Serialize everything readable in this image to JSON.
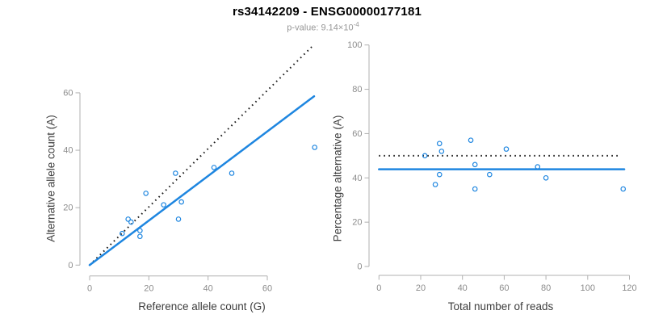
{
  "header": {
    "title": "rs34142209 - ENSG00000177181",
    "subtitle_prefix": "p-value: 9.14×10",
    "subtitle_sup": "-4"
  },
  "colors": {
    "accent_blue": "#1E86E0",
    "identity_line": "#1a1a1a",
    "axis_line": "#b0b0b0",
    "tick_label": "#8c8c8c",
    "axis_title": "#3d3d3d",
    "title": "#000000",
    "subtitle": "#979797"
  },
  "chart_data": [
    {
      "type": "scatter",
      "panel": "left",
      "xlabel": "Reference allele count (G)",
      "ylabel": "Alternative allele count (A)",
      "xticks": [
        0,
        20,
        40,
        60
      ],
      "yticks": [
        0,
        20,
        40,
        60
      ],
      "xlim": [
        0,
        76
      ],
      "ylim": [
        0,
        77
      ],
      "grid": false,
      "points": [
        [
          11,
          11
        ],
        [
          13,
          16
        ],
        [
          14,
          15
        ],
        [
          17,
          10
        ],
        [
          17,
          12
        ],
        [
          19,
          25
        ],
        [
          25,
          21
        ],
        [
          29,
          32
        ],
        [
          30,
          16
        ],
        [
          31,
          22
        ],
        [
          42,
          34
        ],
        [
          48,
          32
        ],
        [
          76,
          41
        ]
      ],
      "lines": [
        {
          "name": "identity-line",
          "style": "dotted",
          "x1": 0,
          "y1": 0,
          "x2": 75.3,
          "y2": 76.3
        },
        {
          "name": "fit-line",
          "style": "solid",
          "x1": 0,
          "y1": 0,
          "x2": 75.8,
          "y2": 58.8
        }
      ]
    },
    {
      "type": "scatter",
      "panel": "right",
      "xlabel": "Total number of reads",
      "ylabel": "Percentage alternative (A)",
      "xticks": [
        0,
        20,
        40,
        60,
        80,
        100,
        120
      ],
      "yticks": [
        0,
        20,
        40,
        60,
        80,
        100
      ],
      "xlim": [
        0,
        120
      ],
      "ylim": [
        0,
        100
      ],
      "grid": false,
      "points": [
        [
          22,
          50
        ],
        [
          27,
          37
        ],
        [
          29,
          41.5
        ],
        [
          29,
          55.5
        ],
        [
          30,
          52
        ],
        [
          44,
          57
        ],
        [
          46,
          35
        ],
        [
          46,
          46
        ],
        [
          53,
          41.5
        ],
        [
          61,
          53
        ],
        [
          76,
          45
        ],
        [
          80,
          40
        ],
        [
          117,
          35
        ]
      ],
      "lines": [
        {
          "name": "identity-line",
          "style": "dotted",
          "x1": 0,
          "y1": 50,
          "x2": 115.5,
          "y2": 50
        },
        {
          "name": "fit-line",
          "style": "solid",
          "x1": 0,
          "y1": 43.9,
          "x2": 117.5,
          "y2": 43.9
        }
      ]
    }
  ]
}
